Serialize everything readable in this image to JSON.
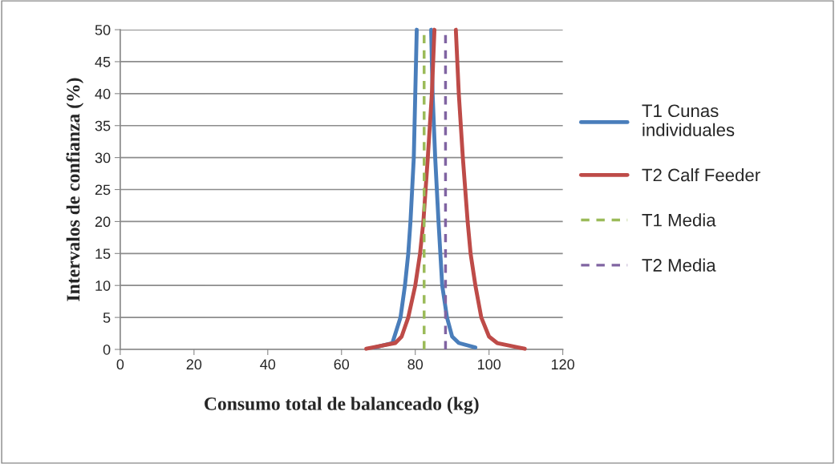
{
  "chart_data": {
    "type": "line",
    "xlabel": "Consumo total de balanceado (kg)",
    "ylabel": "Intervalos de confianza (%)",
    "xlim": [
      0,
      120
    ],
    "xticks": [
      0,
      20,
      40,
      60,
      80,
      100,
      120
    ],
    "ylim": [
      0,
      50
    ],
    "yticks": [
      0,
      5,
      10,
      15,
      20,
      25,
      30,
      35,
      40,
      45,
      50
    ],
    "grid": "y",
    "legend": "right",
    "marker": "none",
    "series": [
      {
        "name": "T1 Cunas individuales",
        "color": "#4a7ebb",
        "line_style": "solid",
        "x": [
          69,
          73.8,
          76,
          77.2,
          78.1,
          78.7,
          79.6,
          80.2,
          80.4,
          null,
          84.3,
          84.7,
          85.4,
          86.3,
          87.3,
          88.6,
          90,
          91.8,
          96.3
        ],
        "values": [
          0.3,
          1,
          5,
          10,
          15,
          20,
          30,
          45,
          50,
          null,
          50,
          40,
          30,
          20,
          10,
          5,
          2,
          1,
          0.3
        ]
      },
      {
        "name": "T2 Calf Feeder",
        "color": "#be4b48",
        "line_style": "solid",
        "x": [
          66.7,
          68.4,
          74.6,
          76.3,
          78.1,
          80,
          81.3,
          82.2,
          83.4,
          84.5,
          85.2,
          null,
          91,
          91.8,
          92.9,
          94.2,
          95,
          96.3,
          97.9,
          100,
          102.2,
          108,
          109.7
        ],
        "values": [
          0.1,
          0.3,
          1,
          2,
          5,
          10,
          15,
          20,
          30,
          40,
          50,
          null,
          50,
          40,
          30,
          20,
          15,
          10,
          5,
          2,
          1,
          0.3,
          0.1
        ]
      },
      {
        "name": "T1 Media",
        "color": "#9bbb59",
        "line_style": "dashed",
        "x": [
          82.4,
          82.4
        ],
        "values": [
          0,
          50
        ]
      },
      {
        "name": "T2 Media",
        "color": "#8064a2",
        "line_style": "dashed",
        "x": [
          88.2,
          88.2
        ],
        "values": [
          0,
          50
        ]
      }
    ]
  }
}
